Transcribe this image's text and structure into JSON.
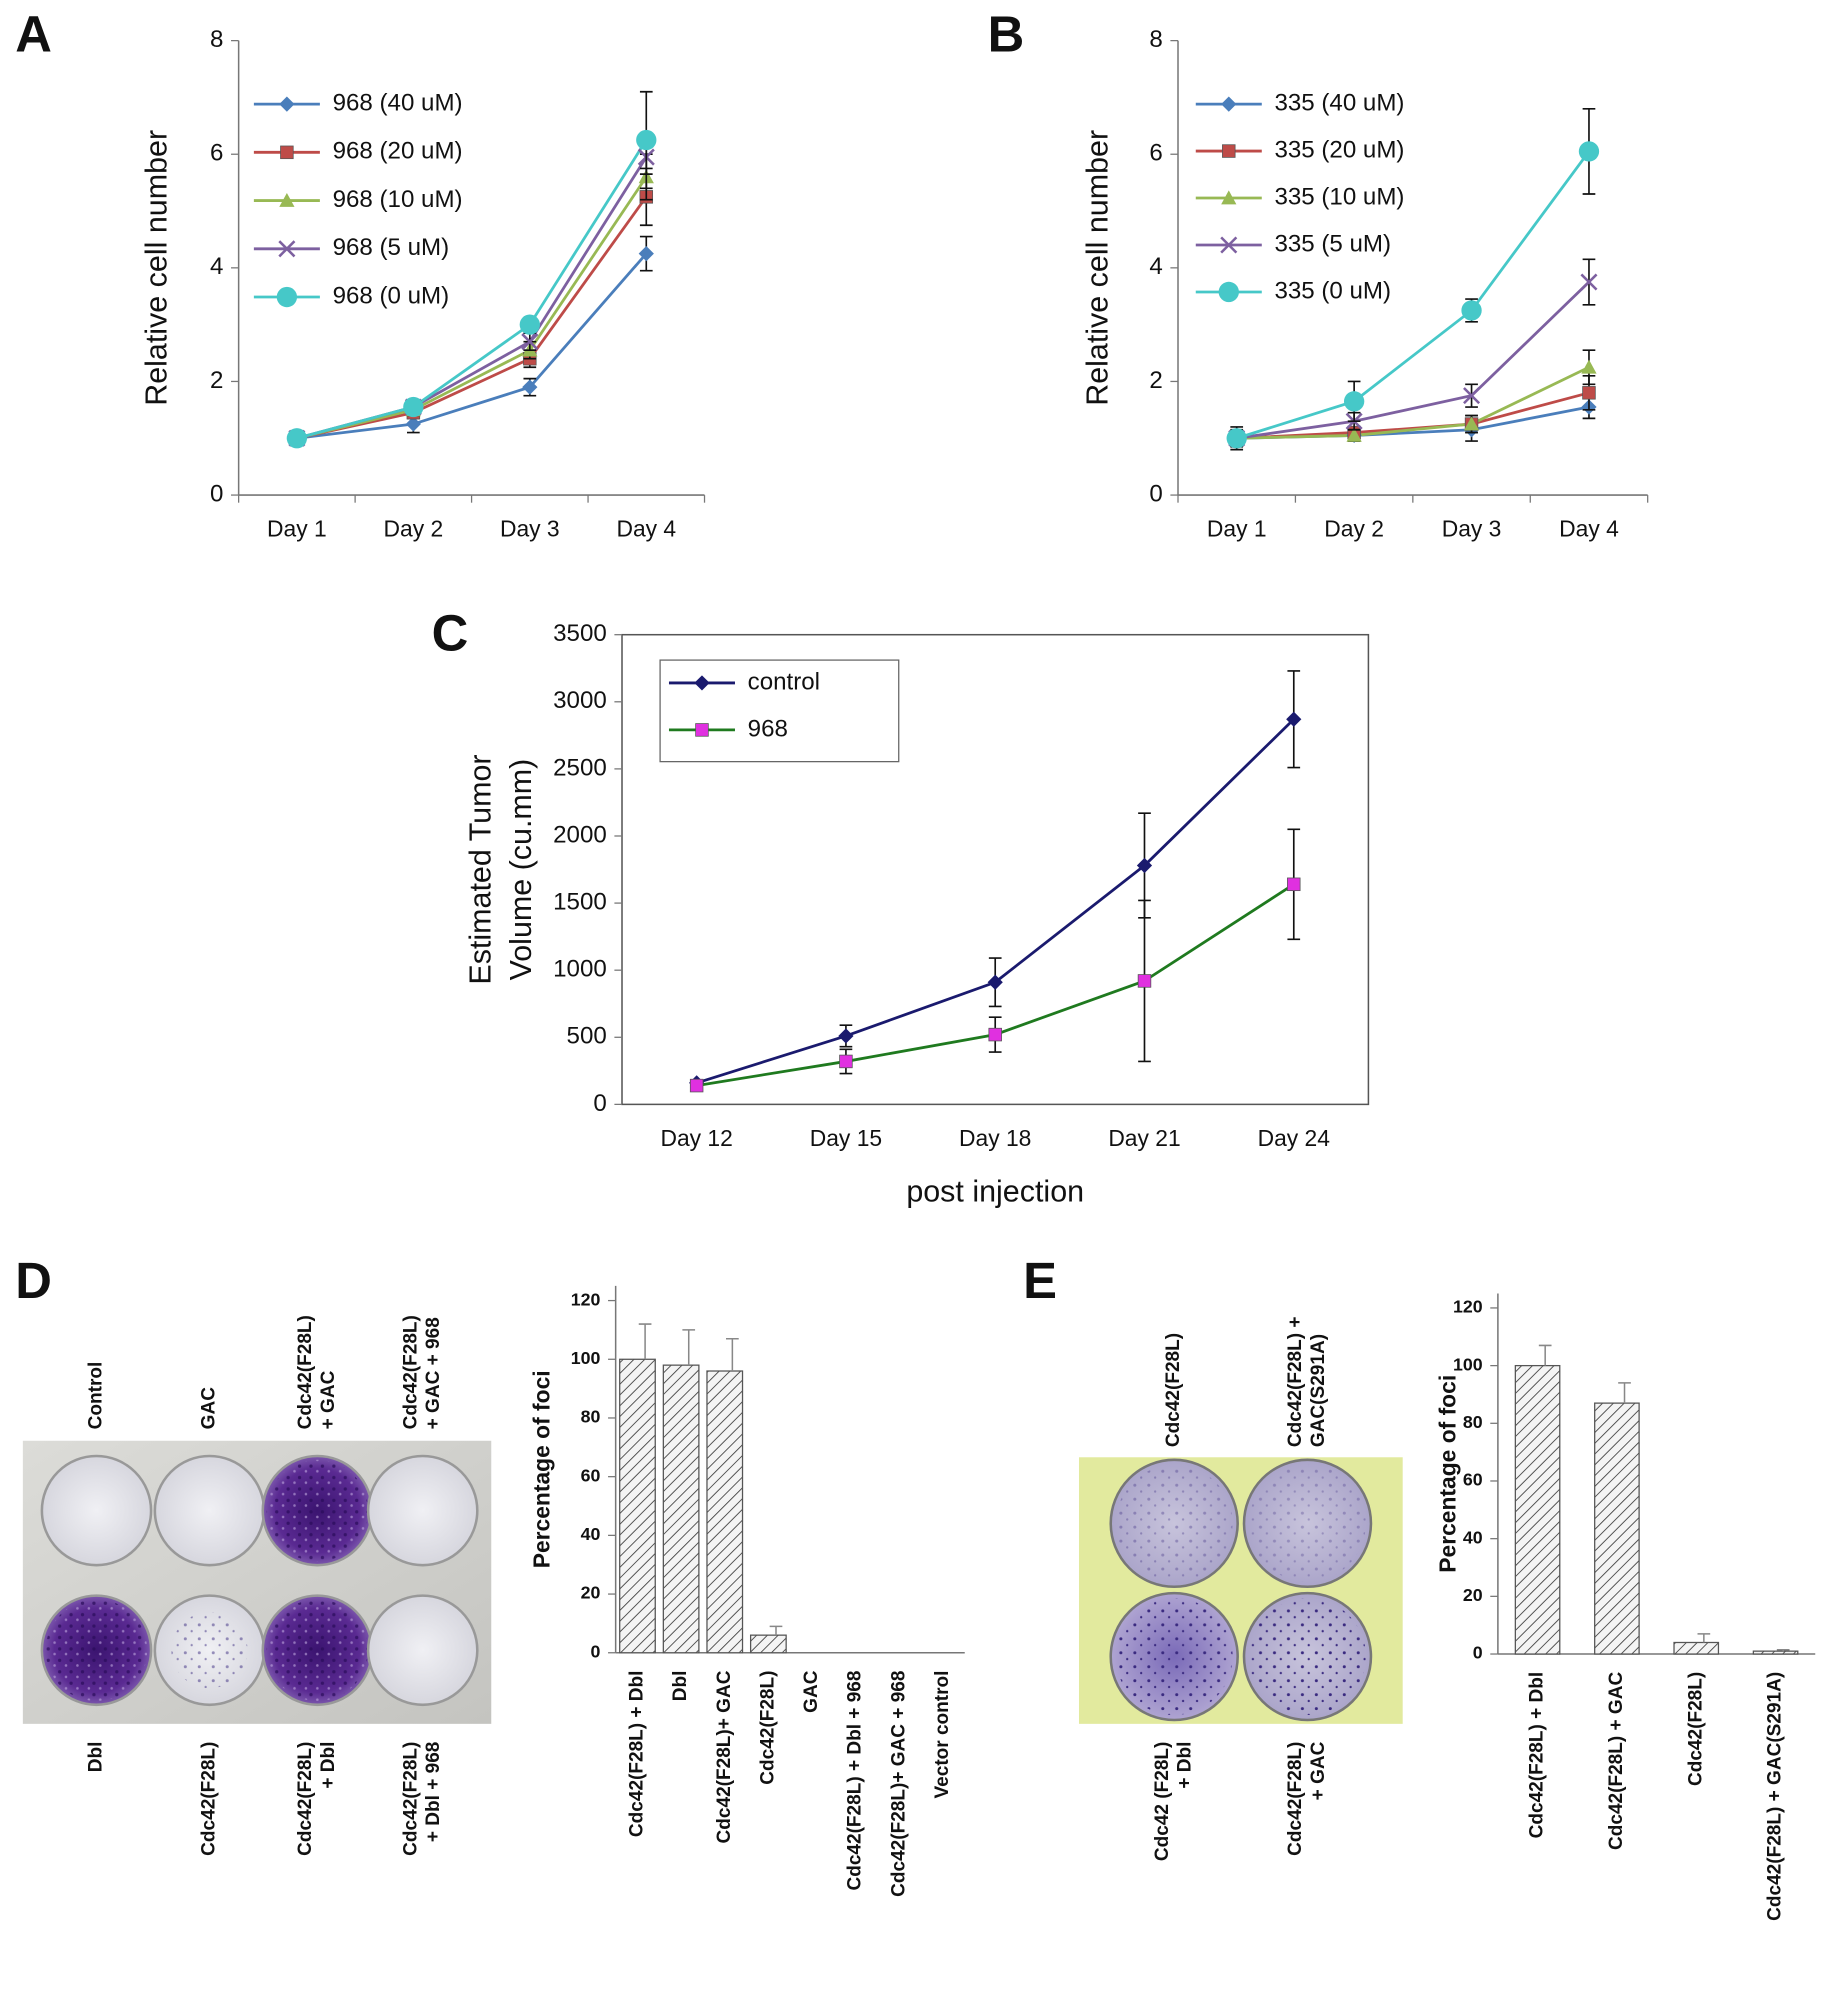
{
  "chart_data": [
    {
      "type": "line",
      "ylabel": "Relative cell number",
      "categories": [
        "Day 1",
        "Day 2",
        "Day 3",
        "Day 4"
      ],
      "ylim": [
        0,
        8
      ],
      "yticks": [
        0,
        2,
        4,
        6,
        8
      ],
      "series": [
        {
          "name": "968 (40 uM)",
          "color": "#4a7ebb",
          "marker": "diamond",
          "values": [
            1,
            1.25,
            1.9,
            4.25
          ],
          "errors": [
            0.1,
            0.15,
            0.15,
            0.3
          ]
        },
        {
          "name": "968 (20 uM)",
          "color": "#be4b48",
          "marker": "square",
          "values": [
            1,
            1.45,
            2.4,
            5.25
          ],
          "errors": [
            0.05,
            0.1,
            0.15,
            0.5
          ]
        },
        {
          "name": "968 (10 uM)",
          "color": "#98b954",
          "marker": "triangle",
          "values": [
            1,
            1.5,
            2.55,
            5.6
          ],
          "errors": [
            0.05,
            0.1,
            0.15,
            0.4
          ]
        },
        {
          "name": "968 (5 uM)",
          "color": "#7d60a0",
          "marker": "x",
          "values": [
            1,
            1.55,
            2.7,
            5.95
          ],
          "errors": [
            0.05,
            0.1,
            0.15,
            0.3
          ]
        },
        {
          "name": "968 (0 uM)",
          "color": "#46c8c8",
          "marker": "circle",
          "values": [
            1,
            1.55,
            3.0,
            6.25
          ],
          "errors": [
            0.1,
            0.1,
            0.1,
            0.85
          ]
        }
      ]
    },
    {
      "type": "line",
      "ylabel": "Relative cell number",
      "categories": [
        "Day 1",
        "Day 2",
        "Day 3",
        "Day 4"
      ],
      "ylim": [
        0,
        8
      ],
      "yticks": [
        0,
        2,
        4,
        6,
        8
      ],
      "series": [
        {
          "name": "335 (40 uM)",
          "color": "#4a7ebb",
          "marker": "diamond",
          "values": [
            1,
            1.05,
            1.15,
            1.55
          ],
          "errors": [
            0.2,
            0.1,
            0.2,
            0.2
          ]
        },
        {
          "name": "335 (20 uM)",
          "color": "#be4b48",
          "marker": "square",
          "values": [
            1,
            1.1,
            1.25,
            1.8
          ],
          "errors": [
            0.1,
            0.1,
            0.15,
            0.3
          ]
        },
        {
          "name": "335 (10 uM)",
          "color": "#98b954",
          "marker": "triangle",
          "values": [
            1,
            1.05,
            1.25,
            2.25
          ],
          "errors": [
            0.1,
            0.1,
            0.15,
            0.3
          ]
        },
        {
          "name": "335 (5 uM)",
          "color": "#7d60a0",
          "marker": "x",
          "values": [
            1,
            1.3,
            1.75,
            3.75
          ],
          "errors": [
            0.1,
            0.15,
            0.2,
            0.4
          ]
        },
        {
          "name": "335 (0 uM)",
          "color": "#46c8c8",
          "marker": "circle",
          "values": [
            1,
            1.65,
            3.25,
            6.05
          ],
          "errors": [
            0.15,
            0.35,
            0.2,
            0.75
          ]
        }
      ]
    },
    {
      "type": "line",
      "ylabel": [
        "Estimated Tumor",
        "Volume (cu.mm)"
      ],
      "xlabel": "post injection",
      "categories": [
        "Day 12",
        "Day 15",
        "Day 18",
        "Day 21",
        "Day 24"
      ],
      "ylim": [
        0,
        3500
      ],
      "yticks": [
        0,
        500,
        1000,
        1500,
        2000,
        2500,
        3000,
        3500
      ],
      "series": [
        {
          "name": "control",
          "color": "#1a1a6e",
          "marker": "diamond",
          "values": [
            160,
            510,
            910,
            1780,
            2870
          ],
          "errors": [
            20,
            80,
            180,
            390,
            360
          ]
        },
        {
          "name": "968",
          "color": "#1f7a1f",
          "marker_color": "#e030e0",
          "marker": "square",
          "values": [
            140,
            320,
            520,
            920,
            1640
          ],
          "errors": [
            20,
            90,
            130,
            600,
            410
          ]
        }
      ]
    },
    {
      "type": "bar",
      "ylabel": "Percentage of foci",
      "categories": [
        "Cdc42(F28L) + Dbl",
        "Dbl",
        "Cdc42(F28L)+ GAC",
        "Cdc42(F28L)",
        "GAC",
        "Cdc42(F28L) + Dbl + 968",
        "Cdc42(F28L)+ GAC + 968",
        "Vector control"
      ],
      "values": [
        100,
        98,
        96,
        6,
        0,
        0,
        0,
        0
      ],
      "errors": [
        12,
        12,
        11,
        3,
        0,
        0,
        0,
        0
      ],
      "ylim": [
        0,
        125
      ],
      "yticks": [
        0,
        20,
        40,
        60,
        80,
        100,
        120
      ]
    },
    {
      "type": "bar",
      "ylabel": "Percentage of foci",
      "categories": [
        "Cdc42(F28L) + Dbl",
        "Cdc42(F28L) + GAC",
        "Cdc42(F28L)",
        "Cdc42(F28L) + GAC(S291A)"
      ],
      "values": [
        100,
        87,
        4,
        1
      ],
      "errors": [
        7,
        7,
        3,
        0.5
      ],
      "ylim": [
        0,
        125
      ],
      "yticks": [
        0,
        20,
        40,
        60,
        80,
        100,
        120
      ]
    }
  ],
  "figure": {
    "panel_labels": [
      "A",
      "B",
      "C",
      "D",
      "E"
    ],
    "plates_d": {
      "top": [
        [
          "Control"
        ],
        [
          "GAC"
        ],
        [
          "Cdc42(F28L)",
          "+ GAC"
        ],
        [
          "Cdc42(F28L)",
          "+ GAC + 968"
        ]
      ],
      "bottom": [
        [
          "Dbl"
        ],
        [
          "Cdc42(F28L)"
        ],
        [
          "Cdc42(F28L)",
          "+ Dbl"
        ],
        [
          "Cdc42(F28L)",
          "+ Dbl + 968"
        ]
      ]
    },
    "plates_e": {
      "top": [
        [
          "Cdc42(F28L)"
        ],
        [
          "Cdc42(F28L) +",
          "GAC(S291A)"
        ]
      ],
      "bottom": [
        [
          "Cdc42 (F28L)",
          "+ Dbl"
        ],
        [
          "Cdc42(F28L)",
          "+ GAC"
        ]
      ]
    }
  }
}
